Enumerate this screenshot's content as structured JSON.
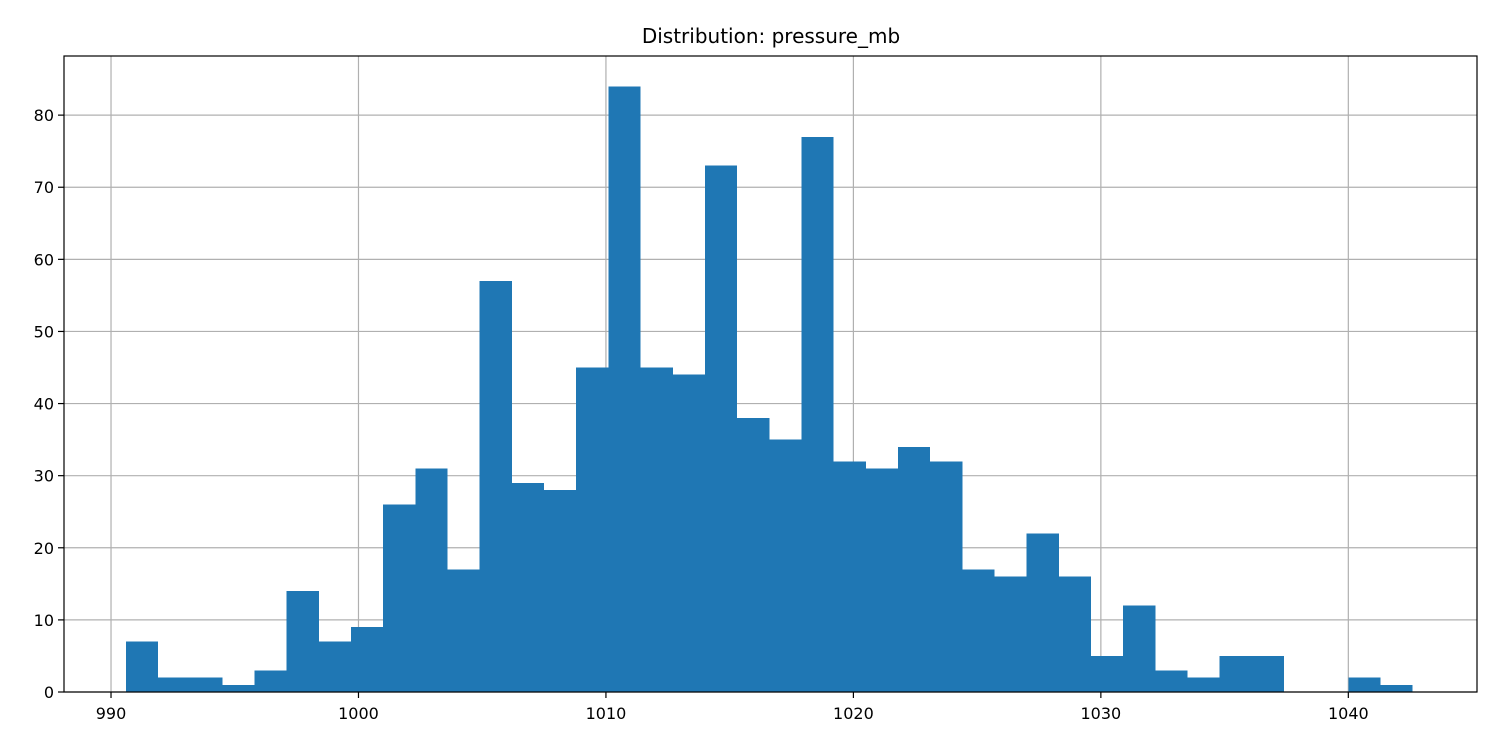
{
  "chart_data": {
    "type": "bar",
    "title": "Distribution: pressure_mb",
    "xlabel": "",
    "ylabel": "",
    "bin_start": 990.6,
    "bin_width": 1.3,
    "counts": [
      7,
      2,
      2,
      1,
      3,
      14,
      7,
      9,
      26,
      31,
      17,
      57,
      29,
      28,
      45,
      84,
      45,
      44,
      73,
      38,
      35,
      77,
      32,
      31,
      34,
      32,
      17,
      16,
      22,
      16,
      5,
      12,
      3,
      2,
      5,
      5,
      0,
      0,
      2,
      1
    ],
    "xlim": [
      988.1,
      1045.2
    ],
    "ylim": [
      0,
      88.2
    ],
    "xticks": [
      990,
      1000,
      1010,
      1020,
      1030,
      1040
    ],
    "yticks": [
      0,
      10,
      20,
      30,
      40,
      50,
      60,
      70,
      80
    ],
    "grid": true,
    "color": "#1f77b4"
  }
}
